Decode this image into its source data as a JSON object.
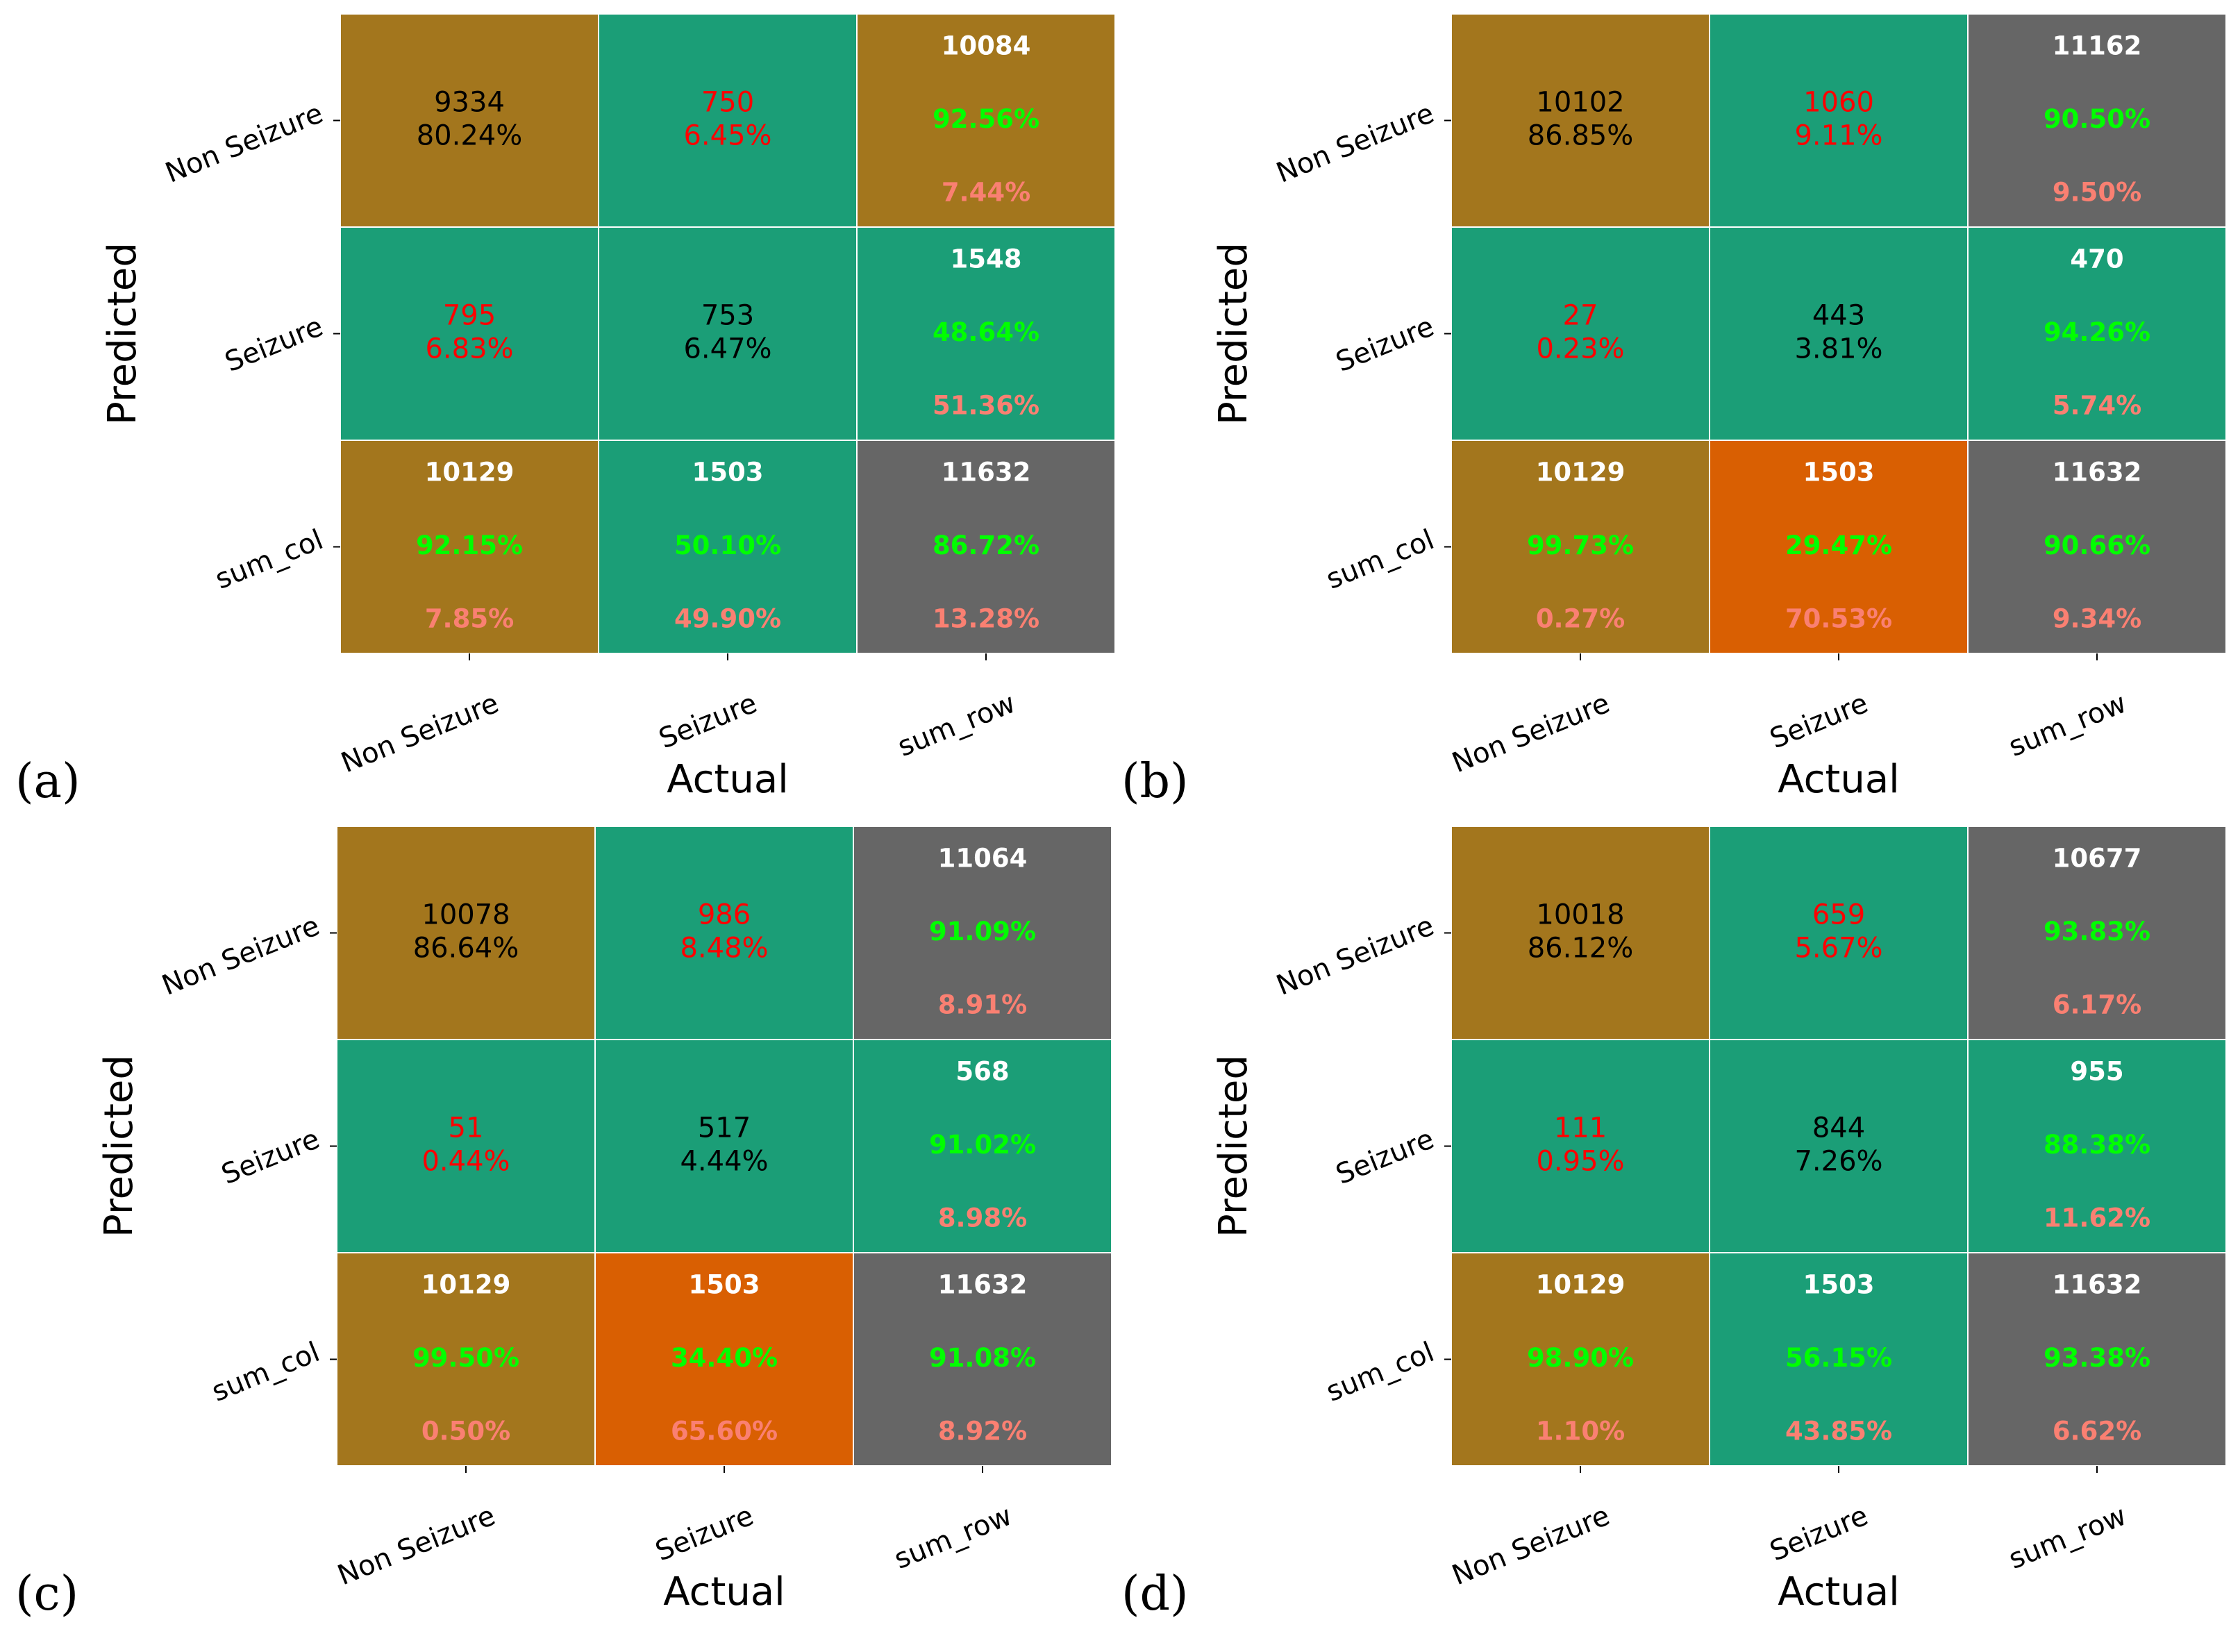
{
  "colors": {
    "correct": "#a3761d",
    "error": "#1b9e77",
    "summary": "#666666",
    "weak": "#d95f02",
    "text_main": "#000000",
    "text_error": "#ff0000",
    "text_white": "#ffffff",
    "text_good": "#00ff00",
    "text_bad": "#fa8072"
  },
  "chart_data": [
    {
      "type": "heatmap",
      "panel_label": "(a)",
      "xlabel": "Actual",
      "ylabel": "Predicted",
      "x_categories": [
        "Non Seizure",
        "Seizure",
        "sum_row"
      ],
      "y_categories": [
        "Non Seizure",
        "Seizure",
        "sum_col"
      ],
      "matrix": [
        [
          9334,
          750
        ],
        [
          795,
          753
        ]
      ],
      "matrix_pct": [
        [
          "80.24%",
          "6.45%"
        ],
        [
          "6.83%",
          "6.47%"
        ]
      ],
      "row_sums": [
        {
          "count": 10084,
          "good": "92.56%",
          "bad": "7.44%"
        },
        {
          "count": 1548,
          "good": "48.64%",
          "bad": "51.36%"
        }
      ],
      "col_sums": [
        {
          "count": 10129,
          "good": "92.15%",
          "bad": "7.85%"
        },
        {
          "count": 1503,
          "good": "50.10%",
          "bad": "49.90%"
        }
      ],
      "total": {
        "count": 11632,
        "good": "86.72%",
        "bad": "13.28%"
      },
      "cell_colors": [
        [
          "correct",
          "error",
          "correct"
        ],
        [
          "error",
          "error",
          "error"
        ],
        [
          "correct",
          "error",
          "summary"
        ]
      ]
    },
    {
      "type": "heatmap",
      "panel_label": "(b)",
      "xlabel": "Actual",
      "ylabel": "Predicted",
      "x_categories": [
        "Non Seizure",
        "Seizure",
        "sum_row"
      ],
      "y_categories": [
        "Non Seizure",
        "Seizure",
        "sum_col"
      ],
      "matrix": [
        [
          10102,
          1060
        ],
        [
          27,
          443
        ]
      ],
      "matrix_pct": [
        [
          "86.85%",
          "9.11%"
        ],
        [
          "0.23%",
          "3.81%"
        ]
      ],
      "row_sums": [
        {
          "count": 11162,
          "good": "90.50%",
          "bad": "9.50%"
        },
        {
          "count": 470,
          "good": "94.26%",
          "bad": "5.74%"
        }
      ],
      "col_sums": [
        {
          "count": 10129,
          "good": "99.73%",
          "bad": "0.27%"
        },
        {
          "count": 1503,
          "good": "29.47%",
          "bad": "70.53%"
        }
      ],
      "total": {
        "count": 11632,
        "good": "90.66%",
        "bad": "9.34%"
      },
      "cell_colors": [
        [
          "correct",
          "error",
          "summary"
        ],
        [
          "error",
          "error",
          "error"
        ],
        [
          "correct",
          "weak",
          "summary"
        ]
      ]
    },
    {
      "type": "heatmap",
      "panel_label": "(c)",
      "xlabel": "Actual",
      "ylabel": "Predicted",
      "x_categories": [
        "Non Seizure",
        "Seizure",
        "sum_row"
      ],
      "y_categories": [
        "Non Seizure",
        "Seizure",
        "sum_col"
      ],
      "matrix": [
        [
          10078,
          986
        ],
        [
          51,
          517
        ]
      ],
      "matrix_pct": [
        [
          "86.64%",
          "8.48%"
        ],
        [
          "0.44%",
          "4.44%"
        ]
      ],
      "row_sums": [
        {
          "count": 11064,
          "good": "91.09%",
          "bad": "8.91%"
        },
        {
          "count": 568,
          "good": "91.02%",
          "bad": "8.98%"
        }
      ],
      "col_sums": [
        {
          "count": 10129,
          "good": "99.50%",
          "bad": "0.50%"
        },
        {
          "count": 1503,
          "good": "34.40%",
          "bad": "65.60%"
        }
      ],
      "total": {
        "count": 11632,
        "good": "91.08%",
        "bad": "8.92%"
      },
      "cell_colors": [
        [
          "correct",
          "error",
          "summary"
        ],
        [
          "error",
          "error",
          "error"
        ],
        [
          "correct",
          "weak",
          "summary"
        ]
      ]
    },
    {
      "type": "heatmap",
      "panel_label": "(d)",
      "xlabel": "Actual",
      "ylabel": "Predicted",
      "x_categories": [
        "Non Seizure",
        "Seizure",
        "sum_row"
      ],
      "y_categories": [
        "Non Seizure",
        "Seizure",
        "sum_col"
      ],
      "matrix": [
        [
          10018,
          659
        ],
        [
          111,
          844
        ]
      ],
      "matrix_pct": [
        [
          "86.12%",
          "5.67%"
        ],
        [
          "0.95%",
          "7.26%"
        ]
      ],
      "row_sums": [
        {
          "count": 10677,
          "good": "93.83%",
          "bad": "6.17%"
        },
        {
          "count": 955,
          "good": "88.38%",
          "bad": "11.62%"
        }
      ],
      "col_sums": [
        {
          "count": 10129,
          "good": "98.90%",
          "bad": "1.10%"
        },
        {
          "count": 1503,
          "good": "56.15%",
          "bad": "43.85%"
        }
      ],
      "total": {
        "count": 11632,
        "good": "93.38%",
        "bad": "6.62%"
      },
      "cell_colors": [
        [
          "correct",
          "error",
          "summary"
        ],
        [
          "error",
          "error",
          "error"
        ],
        [
          "correct",
          "error",
          "summary"
        ]
      ]
    }
  ]
}
